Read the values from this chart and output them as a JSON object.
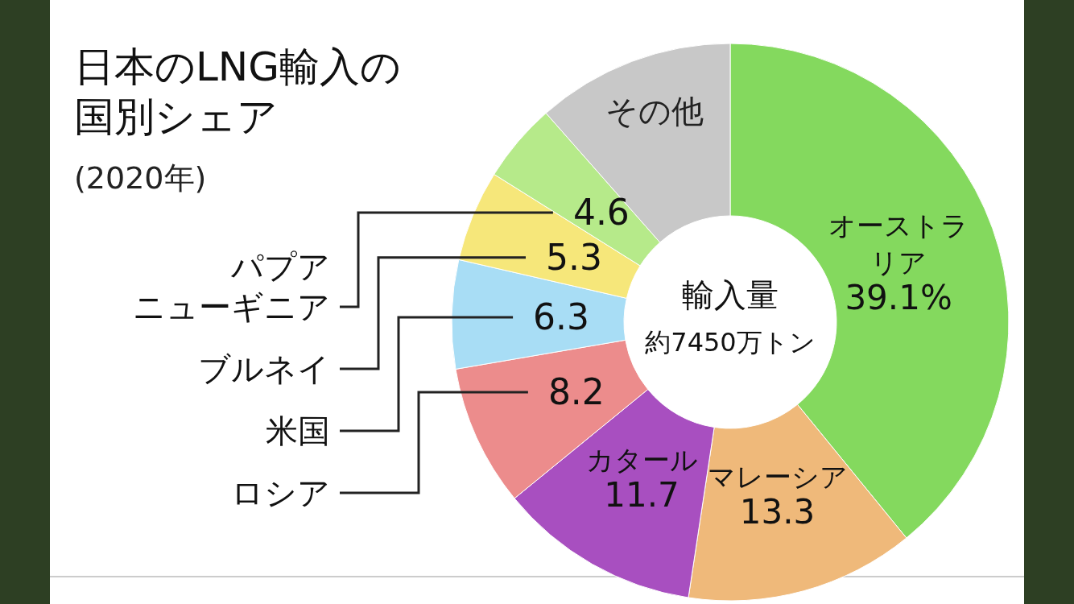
{
  "chart_data": {
    "type": "donut",
    "title": "日本のLNG輸入の国別シェア",
    "subtitle": "(2020年)",
    "categories": [
      "オーストラリア",
      "マレーシア",
      "カタール",
      "ロシア",
      "米国",
      "ブルネイ",
      "パプアニューギニア",
      "その他"
    ],
    "values": [
      39.1,
      13.3,
      11.7,
      8.2,
      6.3,
      5.3,
      4.6,
      11.5
    ],
    "value_labels": [
      "39.1%",
      "13.3",
      "11.7",
      "8.2",
      "6.3",
      "5.3",
      "4.6",
      null
    ],
    "colors": [
      "#84d95e",
      "#efb97a",
      "#a84fc0",
      "#ec8c8c",
      "#a8ddf5",
      "#f6e77a",
      "#b6ea8a",
      "#c8c8c8"
    ],
    "annotations": [
      "輸入量",
      "約7450万トン"
    ]
  }
}
